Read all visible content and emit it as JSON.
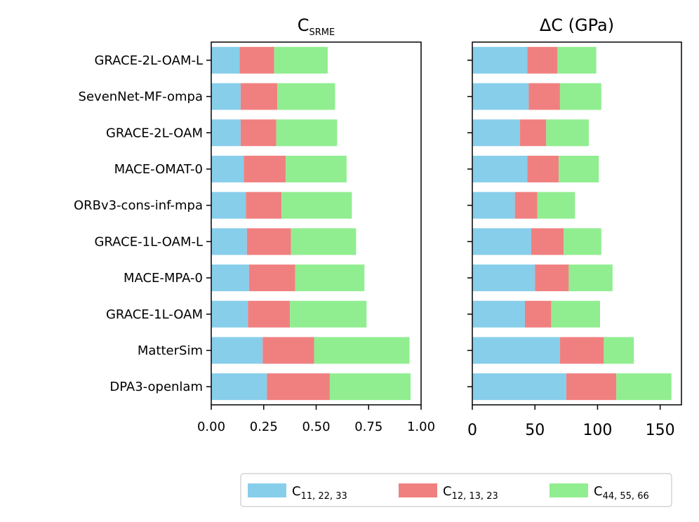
{
  "chart_data": [
    {
      "type": "bar",
      "orientation": "horizontal",
      "stacked": true,
      "title_main": "C",
      "title_sub": "SRME",
      "categories": [
        "GRACE-2L-OAM-L",
        "SevenNet-MF-ompa",
        "GRACE-2L-OAM",
        "MACE-OMAT-0",
        "ORBv3-cons-inf-mpa",
        "GRACE-1L-OAM-L",
        "MACE-MPA-0",
        "GRACE-1L-OAM",
        "MatterSim",
        "DPA3-openlam"
      ],
      "series": [
        {
          "name": "C11,22,33",
          "color": "#87ceeb",
          "values": [
            0.135,
            0.14,
            0.14,
            0.155,
            0.165,
            0.17,
            0.18,
            0.175,
            0.245,
            0.265
          ]
        },
        {
          "name": "C12,13,23",
          "color": "#f08080",
          "values": [
            0.165,
            0.175,
            0.17,
            0.2,
            0.17,
            0.21,
            0.22,
            0.2,
            0.245,
            0.3
          ]
        },
        {
          "name": "C44,55,66",
          "color": "#90ee90",
          "values": [
            0.255,
            0.275,
            0.29,
            0.29,
            0.335,
            0.31,
            0.33,
            0.365,
            0.455,
            0.385
          ]
        }
      ],
      "xlim": [
        0,
        1.0
      ],
      "xticks": [
        "0.00",
        "0.25",
        "0.50",
        "0.75",
        "1.00"
      ]
    },
    {
      "type": "bar",
      "orientation": "horizontal",
      "stacked": true,
      "title": "ΔC (GPa)",
      "categories": [
        "GRACE-2L-OAM-L",
        "SevenNet-MF-ompa",
        "GRACE-2L-OAM",
        "MACE-OMAT-0",
        "ORBv3-cons-inf-mpa",
        "GRACE-1L-OAM-L",
        "MACE-MPA-0",
        "GRACE-1L-OAM",
        "MatterSim",
        "DPA3-openlam"
      ],
      "series": [
        {
          "name": "C11,22,33",
          "color": "#87ceeb",
          "values": [
            44,
            45,
            38,
            44,
            34,
            47,
            50,
            42,
            70,
            75
          ]
        },
        {
          "name": "C12,13,23",
          "color": "#f08080",
          "values": [
            24,
            25,
            21,
            25,
            18,
            26,
            27,
            21,
            35,
            40
          ]
        },
        {
          "name": "C44,55,66",
          "color": "#90ee90",
          "values": [
            31,
            33,
            34,
            32,
            30,
            30,
            35,
            39,
            24,
            44
          ]
        }
      ],
      "xlim": [
        0,
        167
      ],
      "xticks": [
        "0",
        "50",
        "100",
        "150"
      ]
    }
  ],
  "legend": {
    "position": "bottom-right",
    "entries": [
      {
        "main": "C",
        "sub": "11, 22, 33",
        "color": "#87ceeb"
      },
      {
        "main": "C",
        "sub": "12, 13, 23",
        "color": "#f08080"
      },
      {
        "main": "C",
        "sub": "44, 55, 66",
        "color": "#90ee90"
      }
    ]
  }
}
